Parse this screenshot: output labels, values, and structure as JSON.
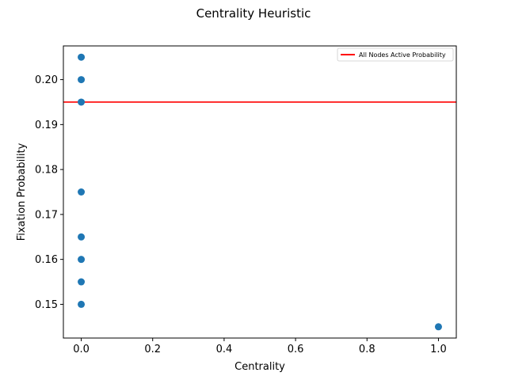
{
  "chart_data": {
    "type": "scatter",
    "title": "Centrality Heuristic",
    "xlabel": "Centrality",
    "ylabel": "Fixation Probability",
    "xlim": [
      -0.05,
      1.05
    ],
    "ylim": [
      0.1425,
      0.2075
    ],
    "xticks": [
      0.0,
      0.2,
      0.4,
      0.6,
      0.8,
      1.0
    ],
    "xtick_labels": [
      "0.0",
      "0.2",
      "0.4",
      "0.6",
      "0.8",
      "1.0"
    ],
    "yticks": [
      0.15,
      0.16,
      0.17,
      0.18,
      0.19,
      0.2
    ],
    "ytick_labels": [
      "0.15",
      "0.16",
      "0.17",
      "0.18",
      "0.19",
      "0.20"
    ],
    "grid": false,
    "series": [
      {
        "type": "scatter",
        "color": "#1f77b4",
        "x": [
          0.0,
          0.0,
          0.0,
          0.0,
          0.0,
          0.0,
          0.0,
          0.0,
          1.0
        ],
        "y": [
          0.205,
          0.2,
          0.195,
          0.175,
          0.165,
          0.16,
          0.155,
          0.15,
          0.145
        ]
      }
    ],
    "hlines": [
      {
        "name": "All Nodes Active Probability",
        "y": 0.195,
        "color": "#ff0000"
      }
    ],
    "legend": {
      "placement": "top-right",
      "entries": [
        "All Nodes Active Probability"
      ]
    }
  }
}
